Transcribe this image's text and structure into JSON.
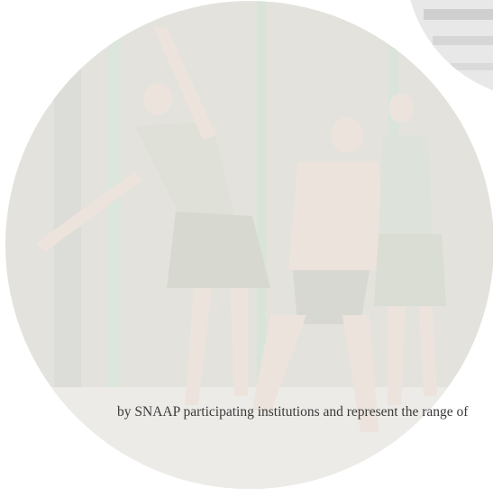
{
  "caption": {
    "text": "by SNAAP participating institutions and represent the range of"
  }
}
